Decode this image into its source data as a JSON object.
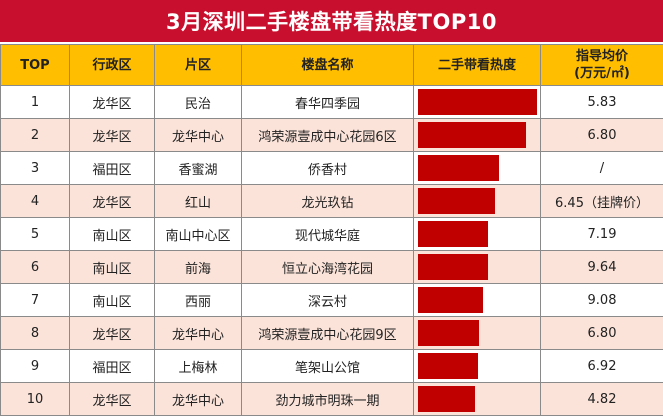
{
  "title": "3月深圳二手楼盘带看热度TOP10",
  "headers": {
    "top": "TOP",
    "district": "行政区",
    "area": "片区",
    "estate": "楼盘名称",
    "heat": "二手带看热度",
    "price_line1": "指导均价",
    "price_line2": "(万元/㎡)"
  },
  "colors": {
    "title_bg": "#c8102e",
    "header_bg": "#ffbf00",
    "bar": "#c00000",
    "row_alt": "#fbe3d9"
  },
  "chart_data": {
    "type": "table",
    "title": "3月深圳二手楼盘带看热度TOP10",
    "columns": [
      "TOP",
      "行政区",
      "片区",
      "楼盘名称",
      "二手带看热度",
      "指导均价(万元/㎡)"
    ],
    "rows": [
      {
        "rank": "1",
        "district": "龙华区",
        "area": "民治",
        "estate": "春华四季园",
        "heat": 1.0,
        "price": "5.83"
      },
      {
        "rank": "2",
        "district": "龙华区",
        "area": "龙华中心",
        "estate": "鸿荣源壹成中心花园6区",
        "heat": 0.91,
        "price": "6.80"
      },
      {
        "rank": "3",
        "district": "福田区",
        "area": "香蜜湖",
        "estate": "侨香村",
        "heat": 0.68,
        "price": "/"
      },
      {
        "rank": "4",
        "district": "龙华区",
        "area": "红山",
        "estate": "龙光玖钻",
        "heat": 0.65,
        "price": "6.45（挂牌价）"
      },
      {
        "rank": "5",
        "district": "南山区",
        "area": "南山中心区",
        "estate": "现代城华庭",
        "heat": 0.59,
        "price": "7.19"
      },
      {
        "rank": "6",
        "district": "南山区",
        "area": "前海",
        "estate": "恒立心海湾花园",
        "heat": 0.59,
        "price": "9.64"
      },
      {
        "rank": "7",
        "district": "南山区",
        "area": "西丽",
        "estate": "深云村",
        "heat": 0.55,
        "price": "9.08"
      },
      {
        "rank": "8",
        "district": "龙华区",
        "area": "龙华中心",
        "estate": "鸿荣源壹成中心花园9区",
        "heat": 0.51,
        "price": "6.80"
      },
      {
        "rank": "9",
        "district": "福田区",
        "area": "上梅林",
        "estate": "笔架山公馆",
        "heat": 0.5,
        "price": "6.92"
      },
      {
        "rank": "10",
        "district": "龙华区",
        "area": "龙华中心",
        "estate": "劲力城市明珠一期",
        "heat": 0.48,
        "price": "4.82"
      }
    ]
  }
}
